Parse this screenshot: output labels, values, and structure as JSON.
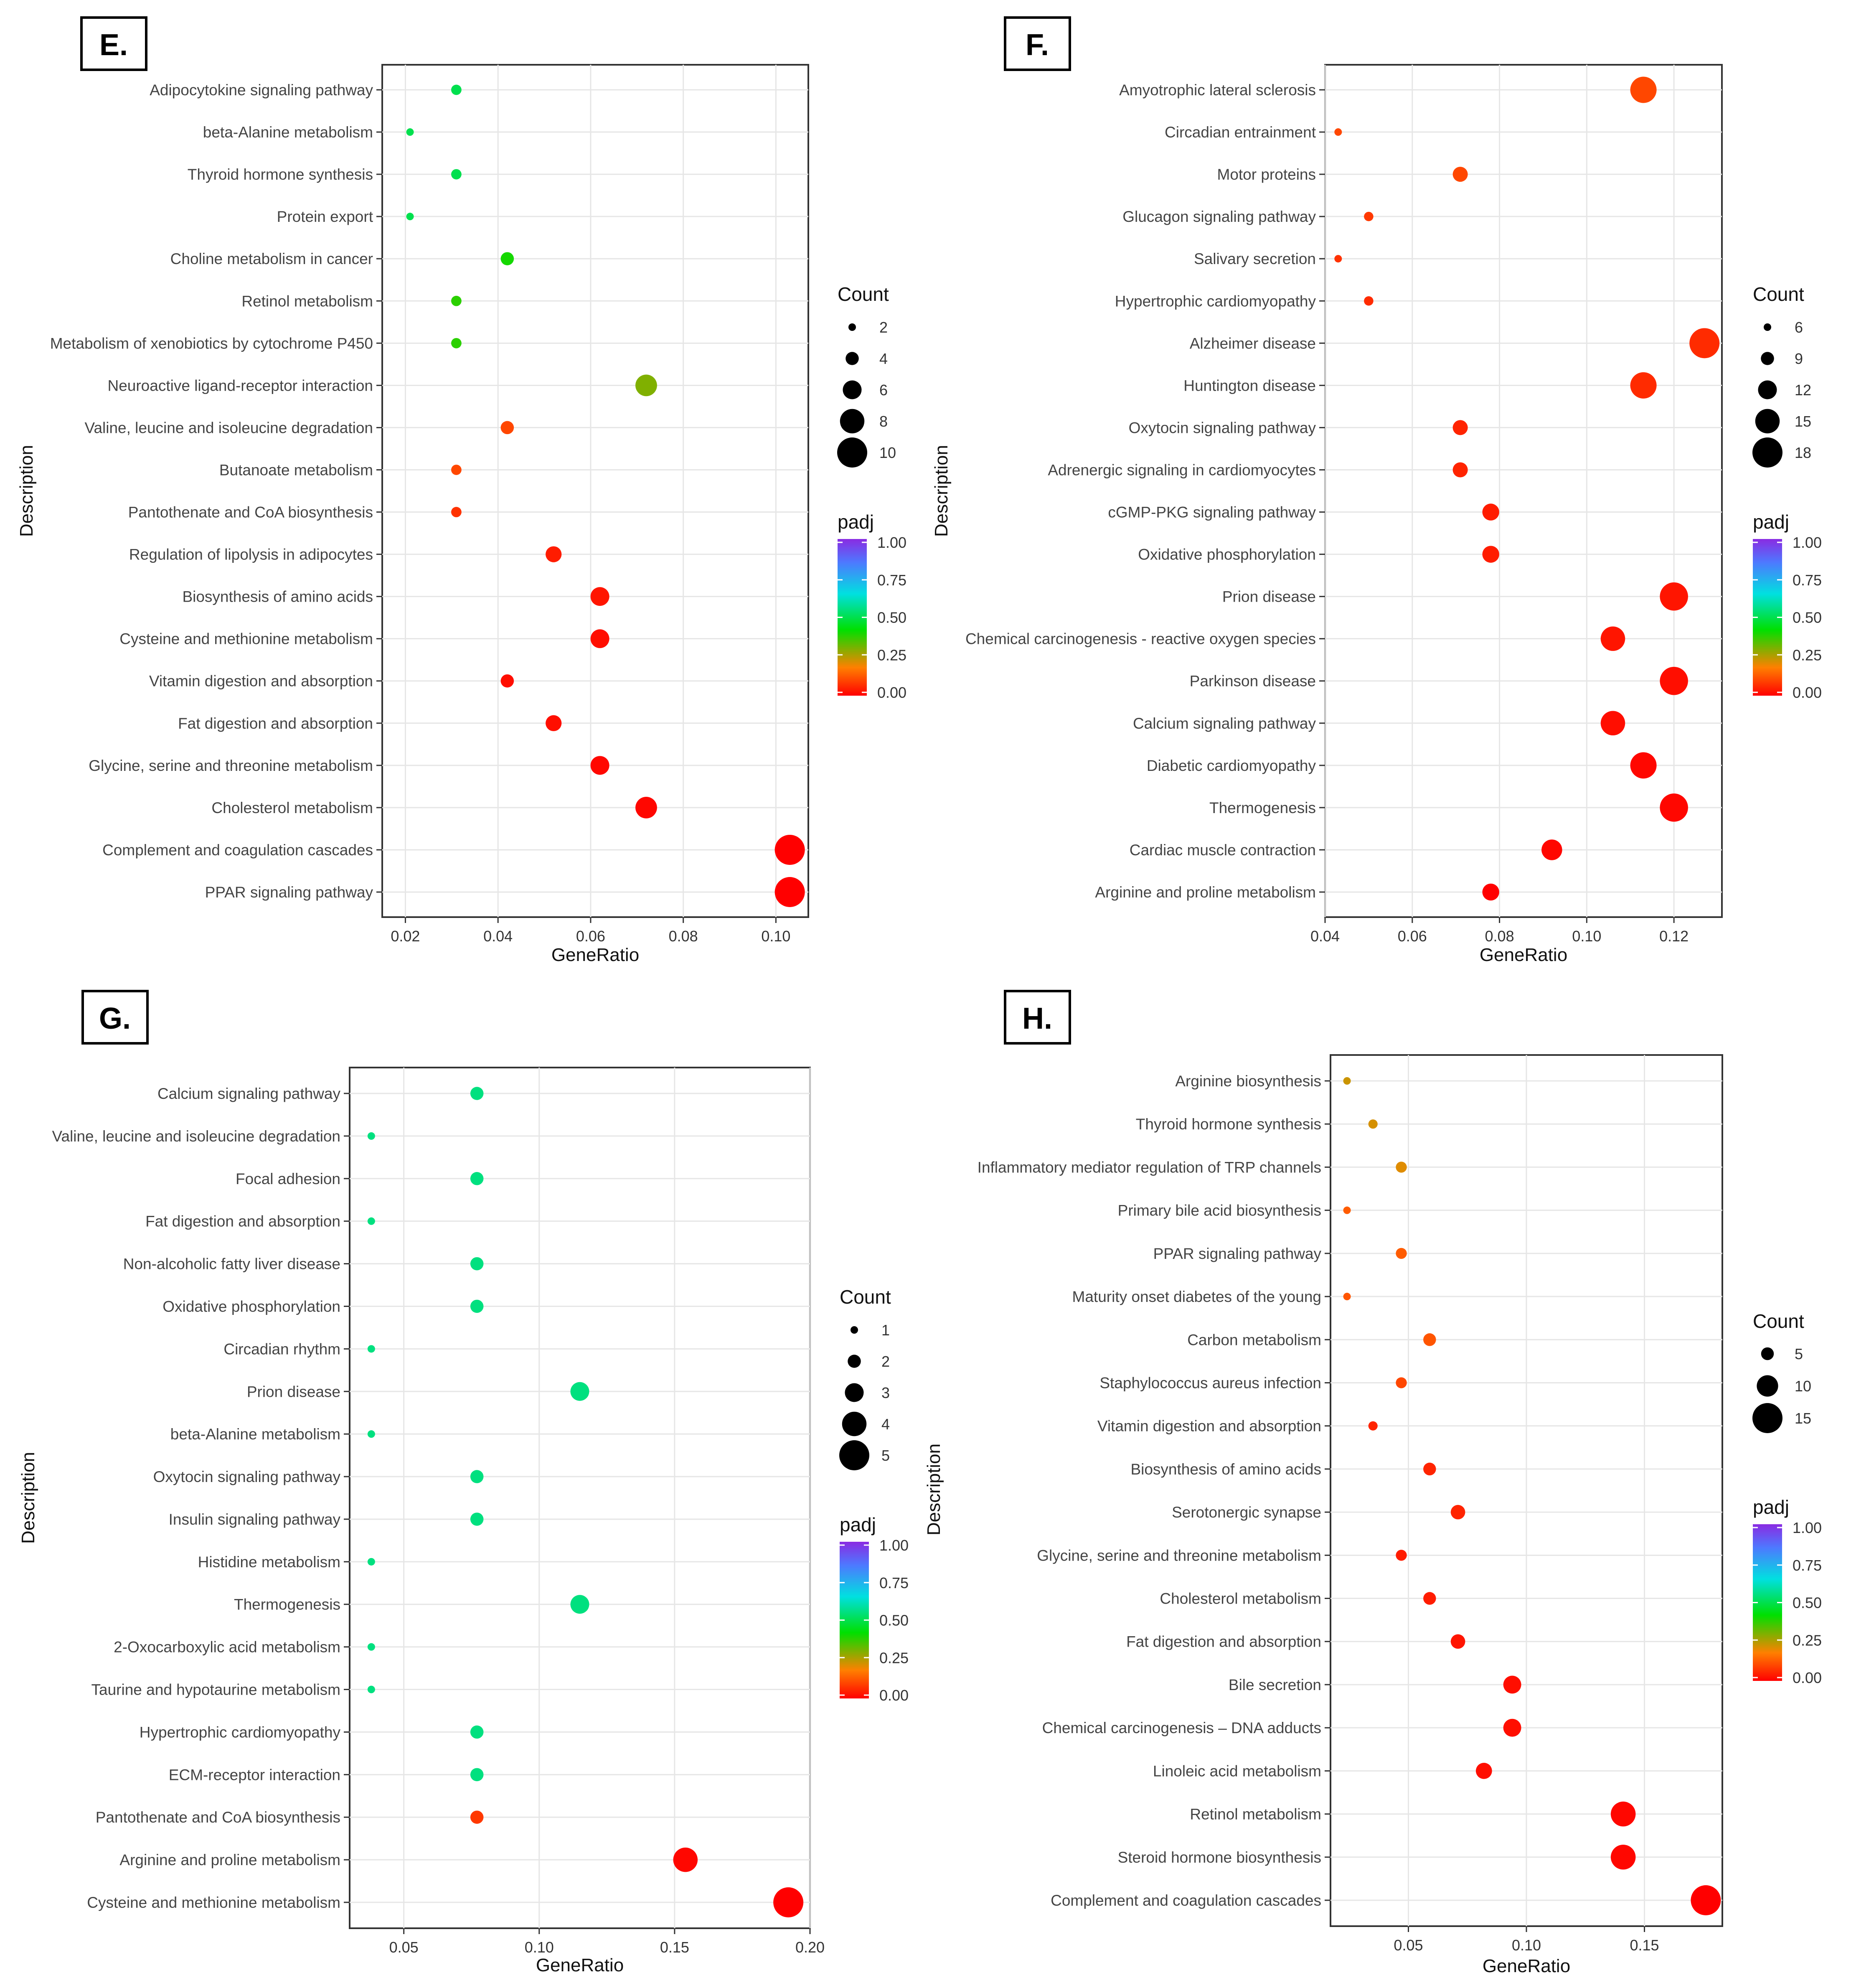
{
  "gradient_colors": [
    "#ff0000",
    "#ff8000",
    "#00e000",
    "#00e0e0",
    "#4d79ff",
    "#8a2be2"
  ],
  "chart_data": [
    {
      "panel": "E.",
      "type": "scatter",
      "xlabel": "GeneRatio",
      "ylabel": "Description",
      "xlim": [
        0.015,
        0.107
      ],
      "xticks": [
        0.02,
        0.04,
        0.06,
        0.08,
        0.1
      ],
      "xtick_labels": [
        "0.02",
        "0.04",
        "0.06",
        "0.08",
        "0.10"
      ],
      "size_legend": {
        "title": "Count",
        "labels": [
          "2",
          "4",
          "6",
          "8",
          "10"
        ],
        "values": [
          2,
          4,
          6,
          8,
          10
        ],
        "min": 2,
        "max": 10
      },
      "color_legend": {
        "title": "padj",
        "labels": [
          "1.00",
          "0.75",
          "0.50",
          "0.25",
          "0.00"
        ]
      },
      "points": [
        {
          "label": "Adipocytokine signaling pathway",
          "x": 0.031,
          "count": 3,
          "padj": 0.5
        },
        {
          "label": "beta-Alanine metabolism",
          "x": 0.021,
          "count": 2,
          "padj": 0.5
        },
        {
          "label": "Thyroid hormone synthesis",
          "x": 0.031,
          "count": 3,
          "padj": 0.5
        },
        {
          "label": "Protein export",
          "x": 0.021,
          "count": 2,
          "padj": 0.5
        },
        {
          "label": "Choline metabolism in cancer",
          "x": 0.042,
          "count": 4,
          "padj": 0.4
        },
        {
          "label": "Retinol metabolism",
          "x": 0.031,
          "count": 3,
          "padj": 0.38
        },
        {
          "label": "Metabolism of xenobiotics by cytochrome P450",
          "x": 0.031,
          "count": 3,
          "padj": 0.38
        },
        {
          "label": "Neuroactive ligand-receptor interaction",
          "x": 0.072,
          "count": 7,
          "padj": 0.3
        },
        {
          "label": "Valine, leucine and isoleucine degradation",
          "x": 0.042,
          "count": 4,
          "padj": 0.1
        },
        {
          "label": "Butanoate metabolism",
          "x": 0.031,
          "count": 3,
          "padj": 0.1
        },
        {
          "label": "Pantothenate and CoA biosynthesis",
          "x": 0.031,
          "count": 3,
          "padj": 0.07
        },
        {
          "label": "Regulation of lipolysis in adipocytes",
          "x": 0.052,
          "count": 5,
          "padj": 0.04
        },
        {
          "label": "Biosynthesis of amino acids",
          "x": 0.062,
          "count": 6,
          "padj": 0.03
        },
        {
          "label": "Cysteine and methionine metabolism",
          "x": 0.062,
          "count": 6,
          "padj": 0.02
        },
        {
          "label": "Vitamin digestion and absorption",
          "x": 0.042,
          "count": 4,
          "padj": 0.02
        },
        {
          "label": "Fat digestion and absorption",
          "x": 0.052,
          "count": 5,
          "padj": 0.02
        },
        {
          "label": "Glycine, serine and threonine metabolism",
          "x": 0.062,
          "count": 6,
          "padj": 0.01
        },
        {
          "label": "Cholesterol metabolism",
          "x": 0.072,
          "count": 7,
          "padj": 0.01
        },
        {
          "label": "Complement and coagulation cascades",
          "x": 0.103,
          "count": 10,
          "padj": 0.0
        },
        {
          "label": "PPAR signaling pathway",
          "x": 0.103,
          "count": 10,
          "padj": 0.0
        }
      ]
    },
    {
      "panel": "F.",
      "type": "scatter",
      "xlabel": "GeneRatio",
      "ylabel": "Description",
      "xlim": [
        0.04,
        0.131
      ],
      "xticks": [
        0.04,
        0.06,
        0.08,
        0.1,
        0.12
      ],
      "xtick_labels": [
        "0.04",
        "0.06",
        "0.08",
        "0.10",
        "0.12"
      ],
      "size_legend": {
        "title": "Count",
        "labels": [
          "6",
          "9",
          "12",
          "15",
          "18"
        ],
        "values": [
          6,
          9,
          12,
          15,
          18
        ],
        "min": 6,
        "max": 18
      },
      "color_legend": {
        "title": "padj",
        "labels": [
          "1.00",
          "0.75",
          "0.50",
          "0.25",
          "0.00"
        ]
      },
      "points": [
        {
          "label": "Amyotrophic lateral sclerosis",
          "x": 0.113,
          "count": 16,
          "padj": 0.1
        },
        {
          "label": "Circadian entrainment",
          "x": 0.043,
          "count": 6,
          "padj": 0.1
        },
        {
          "label": "Motor proteins",
          "x": 0.071,
          "count": 10,
          "padj": 0.1
        },
        {
          "label": "Glucagon signaling pathway",
          "x": 0.05,
          "count": 7,
          "padj": 0.08
        },
        {
          "label": "Salivary secretion",
          "x": 0.043,
          "count": 6,
          "padj": 0.07
        },
        {
          "label": "Hypertrophic cardiomyopathy",
          "x": 0.05,
          "count": 7,
          "padj": 0.06
        },
        {
          "label": "Alzheimer disease",
          "x": 0.127,
          "count": 18,
          "padj": 0.06
        },
        {
          "label": "Huntington disease",
          "x": 0.113,
          "count": 16,
          "padj": 0.06
        },
        {
          "label": "Oxytocin signaling pathway",
          "x": 0.071,
          "count": 10,
          "padj": 0.05
        },
        {
          "label": "Adrenergic signaling in cardiomyocytes",
          "x": 0.071,
          "count": 10,
          "padj": 0.05
        },
        {
          "label": "cGMP-PKG signaling pathway",
          "x": 0.078,
          "count": 11,
          "padj": 0.04
        },
        {
          "label": "Oxidative phosphorylation",
          "x": 0.078,
          "count": 11,
          "padj": 0.04
        },
        {
          "label": "Prion disease",
          "x": 0.12,
          "count": 17,
          "padj": 0.03
        },
        {
          "label": "Chemical carcinogenesis - reactive oxygen species",
          "x": 0.106,
          "count": 15,
          "padj": 0.03
        },
        {
          "label": "Parkinson disease",
          "x": 0.12,
          "count": 17,
          "padj": 0.02
        },
        {
          "label": "Calcium signaling pathway",
          "x": 0.106,
          "count": 15,
          "padj": 0.02
        },
        {
          "label": "Diabetic cardiomyopathy",
          "x": 0.113,
          "count": 16,
          "padj": 0.01
        },
        {
          "label": "Thermogenesis",
          "x": 0.12,
          "count": 17,
          "padj": 0.01
        },
        {
          "label": "Cardiac muscle contraction",
          "x": 0.092,
          "count": 13,
          "padj": 0.01
        },
        {
          "label": "Arginine and proline metabolism",
          "x": 0.078,
          "count": 11,
          "padj": 0.0
        }
      ]
    },
    {
      "panel": "G.",
      "type": "scatter",
      "xlabel": "GeneRatio",
      "ylabel": "Description",
      "xlim": [
        0.03,
        0.2
      ],
      "xticks": [
        0.05,
        0.1,
        0.15,
        0.2
      ],
      "xtick_labels": [
        "0.05",
        "0.10",
        "0.15",
        "0.20"
      ],
      "size_legend": {
        "title": "Count",
        "labels": [
          "1",
          "2",
          "3",
          "4",
          "5"
        ],
        "values": [
          1,
          2,
          3,
          4,
          5
        ],
        "min": 1,
        "max": 5
      },
      "color_legend": {
        "title": "padj",
        "labels": [
          "1.00",
          "0.75",
          "0.50",
          "0.25",
          "0.00"
        ]
      },
      "points": [
        {
          "label": "Calcium signaling pathway",
          "x": 0.077,
          "count": 2,
          "padj": 0.55
        },
        {
          "label": "Valine, leucine and isoleucine degradation",
          "x": 0.038,
          "count": 1,
          "padj": 0.55
        },
        {
          "label": "Focal adhesion",
          "x": 0.077,
          "count": 2,
          "padj": 0.55
        },
        {
          "label": "Fat digestion and absorption",
          "x": 0.038,
          "count": 1,
          "padj": 0.55
        },
        {
          "label": "Non-alcoholic fatty liver disease",
          "x": 0.077,
          "count": 2,
          "padj": 0.55
        },
        {
          "label": "Oxidative phosphorylation",
          "x": 0.077,
          "count": 2,
          "padj": 0.55
        },
        {
          "label": "Circadian rhythm",
          "x": 0.038,
          "count": 1,
          "padj": 0.55
        },
        {
          "label": "Prion disease",
          "x": 0.115,
          "count": 3,
          "padj": 0.55
        },
        {
          "label": "beta-Alanine metabolism",
          "x": 0.038,
          "count": 1,
          "padj": 0.55
        },
        {
          "label": "Oxytocin signaling pathway",
          "x": 0.077,
          "count": 2,
          "padj": 0.55
        },
        {
          "label": "Insulin signaling pathway",
          "x": 0.077,
          "count": 2,
          "padj": 0.55
        },
        {
          "label": "Histidine metabolism",
          "x": 0.038,
          "count": 1,
          "padj": 0.55
        },
        {
          "label": "Thermogenesis",
          "x": 0.115,
          "count": 3,
          "padj": 0.55
        },
        {
          "label": "2-Oxocarboxylic acid metabolism",
          "x": 0.038,
          "count": 1,
          "padj": 0.55
        },
        {
          "label": "Taurine and hypotaurine metabolism",
          "x": 0.038,
          "count": 1,
          "padj": 0.55
        },
        {
          "label": "Hypertrophic cardiomyopathy",
          "x": 0.077,
          "count": 2,
          "padj": 0.55
        },
        {
          "label": "ECM-receptor interaction",
          "x": 0.077,
          "count": 2,
          "padj": 0.55
        },
        {
          "label": "Pantothenate and CoA biosynthesis",
          "x": 0.077,
          "count": 2,
          "padj": 0.08
        },
        {
          "label": "Arginine and proline metabolism",
          "x": 0.154,
          "count": 4,
          "padj": 0.01
        },
        {
          "label": "Cysteine and methionine metabolism",
          "x": 0.192,
          "count": 5,
          "padj": 0.0
        }
      ]
    },
    {
      "panel": "H.",
      "type": "scatter",
      "xlabel": "GeneRatio",
      "ylabel": "Description",
      "xlim": [
        0.017,
        0.183
      ],
      "xticks": [
        0.05,
        0.1,
        0.15
      ],
      "xtick_labels": [
        "0.05",
        "0.10",
        "0.15"
      ],
      "size_legend": {
        "title": "Count",
        "labels": [
          "5",
          "10",
          "15"
        ],
        "values": [
          5,
          10,
          15
        ],
        "min": 2,
        "max": 15
      },
      "color_legend": {
        "title": "padj",
        "labels": [
          "1.00",
          "0.75",
          "0.50",
          "0.25",
          "0.00"
        ]
      },
      "points": [
        {
          "label": "Arginine biosynthesis",
          "x": 0.024,
          "count": 2,
          "padj": 0.23
        },
        {
          "label": "Thyroid hormone synthesis",
          "x": 0.035,
          "count": 3,
          "padj": 0.22
        },
        {
          "label": "Inflammatory mediator regulation of TRP channels",
          "x": 0.047,
          "count": 4,
          "padj": 0.21
        },
        {
          "label": "Primary bile acid biosynthesis",
          "x": 0.024,
          "count": 2,
          "padj": 0.13
        },
        {
          "label": "PPAR signaling pathway",
          "x": 0.047,
          "count": 4,
          "padj": 0.13
        },
        {
          "label": "Maturity onset diabetes of the young",
          "x": 0.024,
          "count": 2,
          "padj": 0.12
        },
        {
          "label": "Carbon metabolism",
          "x": 0.059,
          "count": 5,
          "padj": 0.12
        },
        {
          "label": "Staphylococcus aureus infection",
          "x": 0.047,
          "count": 4,
          "padj": 0.1
        },
        {
          "label": "Vitamin digestion and absorption",
          "x": 0.035,
          "count": 3,
          "padj": 0.05
        },
        {
          "label": "Biosynthesis of amino acids",
          "x": 0.059,
          "count": 5,
          "padj": 0.05
        },
        {
          "label": "Serotonergic synapse",
          "x": 0.071,
          "count": 6,
          "padj": 0.05
        },
        {
          "label": "Glycine, serine and threonine metabolism",
          "x": 0.047,
          "count": 4,
          "padj": 0.04
        },
        {
          "label": "Cholesterol metabolism",
          "x": 0.059,
          "count": 5,
          "padj": 0.04
        },
        {
          "label": "Fat digestion and absorption",
          "x": 0.071,
          "count": 6,
          "padj": 0.03
        },
        {
          "label": "Bile secretion",
          "x": 0.094,
          "count": 8,
          "padj": 0.02
        },
        {
          "label": "Chemical carcinogenesis – DNA adducts",
          "x": 0.094,
          "count": 8,
          "padj": 0.02
        },
        {
          "label": "Linoleic acid metabolism",
          "x": 0.082,
          "count": 7,
          "padj": 0.02
        },
        {
          "label": "Retinol metabolism",
          "x": 0.141,
          "count": 12,
          "padj": 0.01
        },
        {
          "label": "Steroid hormone biosynthesis",
          "x": 0.141,
          "count": 12,
          "padj": 0.01
        },
        {
          "label": "Complement and coagulation cascades",
          "x": 0.176,
          "count": 15,
          "padj": 0.0
        }
      ]
    }
  ]
}
